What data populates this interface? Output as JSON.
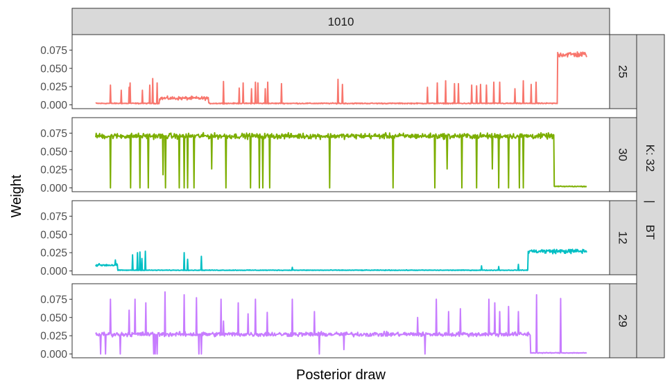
{
  "chart_data": {
    "type": "line",
    "column_facet": "1010",
    "row_facet_outer": [
      "K: 32",
      "|",
      "BT"
    ],
    "xlabel": "Posterior draw",
    "ylabel": "Weight",
    "x_axis_labels_shown": false,
    "ylim": [
      0,
      0.09
    ],
    "yticks": [
      0.0,
      0.025,
      0.05,
      0.075
    ],
    "ytick_labels": [
      "0.000",
      "0.025",
      "0.050",
      "0.075"
    ],
    "grid": false,
    "legend": "none",
    "n_draws": 1000,
    "panels": [
      {
        "strip": "25",
        "color": "#F8766D",
        "segments": [
          {
            "from": 0,
            "to": 130,
            "level": 0.002,
            "noise": 0.001
          },
          {
            "from": 130,
            "to": 230,
            "level": 0.009,
            "noise": 0.0035
          },
          {
            "from": 230,
            "to": 940,
            "level": 0.002,
            "noise": 0.001
          },
          {
            "from": 940,
            "to": 1000,
            "level": 0.069,
            "noise": 0.006
          }
        ],
        "spikes_up": [
          {
            "x": 30,
            "y": 0.027
          },
          {
            "x": 52,
            "y": 0.02
          },
          {
            "x": 68,
            "y": 0.024
          },
          {
            "x": 70,
            "y": 0.03
          },
          {
            "x": 95,
            "y": 0.02
          },
          {
            "x": 110,
            "y": 0.027
          },
          {
            "x": 116,
            "y": 0.036
          },
          {
            "x": 125,
            "y": 0.03
          },
          {
            "x": 260,
            "y": 0.032
          },
          {
            "x": 292,
            "y": 0.023
          },
          {
            "x": 300,
            "y": 0.03
          },
          {
            "x": 317,
            "y": 0.022
          },
          {
            "x": 325,
            "y": 0.031
          },
          {
            "x": 330,
            "y": 0.03
          },
          {
            "x": 345,
            "y": 0.022
          },
          {
            "x": 350,
            "y": 0.031
          },
          {
            "x": 378,
            "y": 0.029
          },
          {
            "x": 493,
            "y": 0.035
          },
          {
            "x": 502,
            "y": 0.028
          },
          {
            "x": 675,
            "y": 0.024
          },
          {
            "x": 695,
            "y": 0.03
          },
          {
            "x": 712,
            "y": 0.033
          },
          {
            "x": 730,
            "y": 0.029
          },
          {
            "x": 738,
            "y": 0.029
          },
          {
            "x": 765,
            "y": 0.027
          },
          {
            "x": 775,
            "y": 0.026
          },
          {
            "x": 783,
            "y": 0.028
          },
          {
            "x": 795,
            "y": 0.027
          },
          {
            "x": 810,
            "y": 0.031
          },
          {
            "x": 822,
            "y": 0.031
          },
          {
            "x": 853,
            "y": 0.022
          },
          {
            "x": 870,
            "y": 0.033
          },
          {
            "x": 886,
            "y": 0.028
          },
          {
            "x": 896,
            "y": 0.031
          }
        ],
        "spikes_down": []
      },
      {
        "strip": "30",
        "color": "#7CAE00",
        "segments": [
          {
            "from": 0,
            "to": 933,
            "level": 0.071,
            "noise": 0.0055
          },
          {
            "from": 933,
            "to": 1000,
            "level": 0.002,
            "noise": 0.0008
          }
        ],
        "spikes_up": [],
        "spikes_down": [
          {
            "x": 30,
            "y": 0.0
          },
          {
            "x": 71,
            "y": 0.0
          },
          {
            "x": 90,
            "y": 0.0
          },
          {
            "x": 107,
            "y": 0.0
          },
          {
            "x": 137,
            "y": 0.018
          },
          {
            "x": 142,
            "y": 0.0
          },
          {
            "x": 170,
            "y": 0.0
          },
          {
            "x": 180,
            "y": 0.0
          },
          {
            "x": 187,
            "y": 0.0
          },
          {
            "x": 200,
            "y": 0.0
          },
          {
            "x": 236,
            "y": 0.026
          },
          {
            "x": 265,
            "y": 0.0
          },
          {
            "x": 315,
            "y": 0.0
          },
          {
            "x": 333,
            "y": 0.0
          },
          {
            "x": 340,
            "y": 0.0
          },
          {
            "x": 354,
            "y": 0.0
          },
          {
            "x": 476,
            "y": 0.0
          },
          {
            "x": 605,
            "y": 0.0
          },
          {
            "x": 690,
            "y": 0.0
          },
          {
            "x": 715,
            "y": 0.026
          },
          {
            "x": 745,
            "y": 0.0
          },
          {
            "x": 775,
            "y": 0.0
          },
          {
            "x": 807,
            "y": 0.026
          },
          {
            "x": 820,
            "y": 0.0
          },
          {
            "x": 840,
            "y": 0.0
          },
          {
            "x": 862,
            "y": 0.0
          },
          {
            "x": 870,
            "y": 0.0
          }
        ]
      },
      {
        "strip": "12",
        "color": "#00BFC4",
        "segments": [
          {
            "from": 0,
            "to": 45,
            "level": 0.008,
            "noise": 0.0025
          },
          {
            "from": 45,
            "to": 880,
            "level": 0.001,
            "noise": 0.0006
          },
          {
            "from": 880,
            "to": 1000,
            "level": 0.027,
            "noise": 0.0045
          }
        ],
        "spikes_up": [
          {
            "x": 40,
            "y": 0.015
          },
          {
            "x": 75,
            "y": 0.022
          },
          {
            "x": 85,
            "y": 0.025
          },
          {
            "x": 90,
            "y": 0.026
          },
          {
            "x": 94,
            "y": 0.017
          },
          {
            "x": 101,
            "y": 0.027
          },
          {
            "x": 180,
            "y": 0.025
          },
          {
            "x": 187,
            "y": 0.016
          },
          {
            "x": 215,
            "y": 0.02
          },
          {
            "x": 400,
            "y": 0.005
          },
          {
            "x": 785,
            "y": 0.007
          },
          {
            "x": 820,
            "y": 0.006
          },
          {
            "x": 860,
            "y": 0.009
          }
        ],
        "spikes_down": []
      },
      {
        "strip": "29",
        "color": "#C77CFF",
        "segments": [
          {
            "from": 0,
            "to": 885,
            "level": 0.027,
            "noise": 0.0045
          },
          {
            "from": 885,
            "to": 1000,
            "level": 0.0015,
            "noise": 0.0008
          }
        ],
        "spikes_up": [
          {
            "x": 30,
            "y": 0.075
          },
          {
            "x": 68,
            "y": 0.06
          },
          {
            "x": 80,
            "y": 0.075
          },
          {
            "x": 102,
            "y": 0.07
          },
          {
            "x": 141,
            "y": 0.085
          },
          {
            "x": 180,
            "y": 0.081
          },
          {
            "x": 205,
            "y": 0.077
          },
          {
            "x": 255,
            "y": 0.075
          },
          {
            "x": 260,
            "y": 0.045
          },
          {
            "x": 290,
            "y": 0.07
          },
          {
            "x": 310,
            "y": 0.055
          },
          {
            "x": 325,
            "y": 0.075
          },
          {
            "x": 349,
            "y": 0.057
          },
          {
            "x": 400,
            "y": 0.075
          },
          {
            "x": 445,
            "y": 0.058
          },
          {
            "x": 655,
            "y": 0.05
          },
          {
            "x": 693,
            "y": 0.075
          },
          {
            "x": 718,
            "y": 0.058
          },
          {
            "x": 742,
            "y": 0.062
          },
          {
            "x": 800,
            "y": 0.075
          },
          {
            "x": 812,
            "y": 0.07
          },
          {
            "x": 822,
            "y": 0.058
          },
          {
            "x": 840,
            "y": 0.065
          },
          {
            "x": 860,
            "y": 0.058
          },
          {
            "x": 897,
            "y": 0.081
          },
          {
            "x": 946,
            "y": 0.076
          }
        ],
        "spikes_down": [
          {
            "x": 10,
            "y": 0.0
          },
          {
            "x": 20,
            "y": 0.0
          },
          {
            "x": 50,
            "y": 0.0
          },
          {
            "x": 118,
            "y": 0.0
          },
          {
            "x": 121,
            "y": 0.0
          },
          {
            "x": 125,
            "y": 0.0
          },
          {
            "x": 210,
            "y": 0.0
          },
          {
            "x": 215,
            "y": 0.0
          },
          {
            "x": 455,
            "y": 0.0
          },
          {
            "x": 505,
            "y": 0.006
          },
          {
            "x": 670,
            "y": 0.0
          }
        ]
      }
    ]
  }
}
